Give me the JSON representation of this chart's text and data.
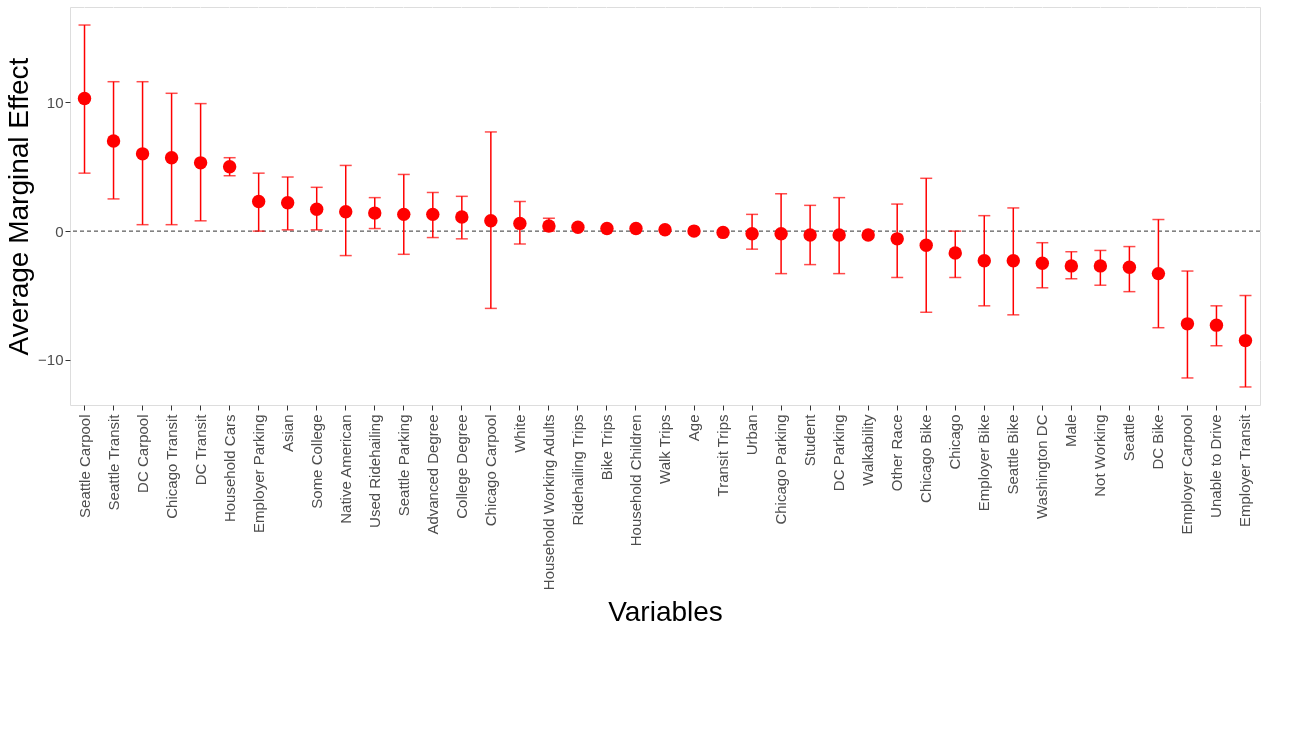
{
  "chart_data": {
    "type": "scatter",
    "xlabel": "Variables",
    "ylabel": "Average Marginal Effect",
    "categories": [
      "Seattle Carpool",
      "Seattle Transit",
      "DC Carpool",
      "Chicago Transit",
      "DC Transit",
      "Household Cars",
      "Employer Parking",
      "Asian",
      "Some College",
      "Native American",
      "Used Ridehailing",
      "Seattle Parking",
      "Advanced Degree",
      "College Degree",
      "Chicago Carpool",
      "White",
      "Household Working Adults",
      "Ridehailing Trips",
      "Bike Trips",
      "Household Children",
      "Walk Trips",
      "Age",
      "Transit Trips",
      "Urban",
      "Chicago Parking",
      "Student",
      "DC Parking",
      "Walkability",
      "Other Race",
      "Chicago Bike",
      "Chicago",
      "Employer Bike",
      "Seattle Bike",
      "Washington DC",
      "Male",
      "Not Working",
      "Seattle",
      "DC Bike",
      "Employer Carpool",
      "Unable to Drive",
      "Employer Transit"
    ],
    "series": [
      {
        "color": "#ff0000",
        "values": [
          10.3,
          7.0,
          6.0,
          5.7,
          5.3,
          5.0,
          2.3,
          2.2,
          1.7,
          1.5,
          1.4,
          1.3,
          1.3,
          1.1,
          0.8,
          0.6,
          0.4,
          0.3,
          0.2,
          0.2,
          0.1,
          0.0,
          -0.1,
          -0.2,
          -0.2,
          -0.3,
          -0.3,
          -0.3,
          -0.6,
          -1.1,
          -1.7,
          -2.3,
          -2.3,
          -2.5,
          -2.7,
          -2.7,
          -2.8,
          -3.3,
          -7.2,
          -7.3,
          -8.5
        ],
        "errors": [
          [
            4.5,
            16.0
          ],
          [
            2.5,
            11.6
          ],
          [
            0.5,
            11.6
          ],
          [
            0.5,
            10.7
          ],
          [
            0.8,
            9.9
          ],
          [
            4.3,
            5.7
          ],
          [
            0.0,
            4.5
          ],
          [
            0.1,
            4.2
          ],
          [
            0.1,
            3.4
          ],
          [
            -1.9,
            5.1
          ],
          [
            0.2,
            2.6
          ],
          [
            -1.8,
            4.4
          ],
          [
            -0.5,
            3.0
          ],
          [
            -0.6,
            2.7
          ],
          [
            -6.0,
            7.7
          ],
          [
            -1.0,
            2.3
          ],
          [
            0.0,
            1.0
          ],
          null,
          null,
          null,
          null,
          null,
          null,
          [
            -1.4,
            1.3
          ],
          [
            -3.3,
            2.9
          ],
          [
            -2.6,
            2.0
          ],
          [
            -3.3,
            2.6
          ],
          null,
          [
            -3.6,
            2.1
          ],
          [
            -6.3,
            4.1
          ],
          [
            -3.6,
            0.0
          ],
          [
            -5.8,
            1.2
          ],
          [
            -6.5,
            1.8
          ],
          [
            -4.4,
            -0.9
          ],
          [
            -3.7,
            -1.6
          ],
          [
            -4.2,
            -1.5
          ],
          [
            -4.7,
            -1.2
          ],
          [
            -7.5,
            0.9
          ],
          [
            -11.4,
            -3.1
          ],
          [
            -8.9,
            -5.8
          ],
          [
            -12.1,
            -5.0
          ]
        ]
      }
    ],
    "ylim": [
      -13.5,
      17.4
    ],
    "yticks": [
      -10,
      0,
      10
    ],
    "grid": true,
    "marker": "circle",
    "ref_lines": [
      {
        "axis": "y",
        "value": 0,
        "line_style": "dashed",
        "color": "#333333"
      }
    ]
  }
}
